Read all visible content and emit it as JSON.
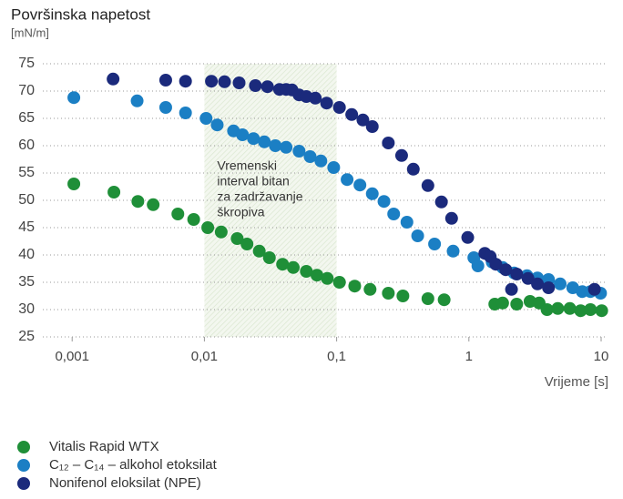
{
  "chart_data": {
    "type": "scatter",
    "title": "Površinska napetost",
    "subtitle": "[mN/m]",
    "x_label": "Vrijeme [s]",
    "log_x": true,
    "grid": true,
    "legend": "bottom-left",
    "xlim": [
      0.0006,
      11
    ],
    "xticks": [
      {
        "value": 0.001,
        "label": "0,001"
      },
      {
        "value": 0.01,
        "label": "0,01"
      },
      {
        "value": 0.1,
        "label": "0,1"
      },
      1,
      10
    ],
    "ylim": [
      25,
      75
    ],
    "yticks": [
      25,
      30,
      35,
      40,
      45,
      50,
      55,
      60,
      65,
      70,
      75
    ],
    "highlight_x": [
      0.01,
      0.1
    ],
    "annotation": [
      "Vremenski",
      "interval bitan",
      "za zadržavanje",
      "škropiva"
    ],
    "series": [
      {
        "name": "Vitalis Rapid WTX",
        "color": "#1f8f38",
        "x": [
          0.00103,
          0.00207,
          0.00314,
          0.0041,
          0.0063,
          0.0083,
          0.0106,
          0.0134,
          0.0177,
          0.021,
          0.026,
          0.031,
          0.039,
          0.047,
          0.059,
          0.071,
          0.085,
          0.105,
          0.137,
          0.179,
          0.246,
          0.317,
          0.49,
          0.65,
          1.57,
          1.8,
          2.3,
          2.9,
          3.4,
          3.9,
          4.7,
          5.8,
          7,
          8.3,
          10.1
        ],
        "values": [
          53,
          51.5,
          49.8,
          49.2,
          47.5,
          46.5,
          45,
          44.2,
          43,
          42,
          40.7,
          39.5,
          38.3,
          37.7,
          37,
          36.3,
          35.7,
          35,
          34.3,
          33.7,
          33,
          32.5,
          32,
          31.8,
          31,
          31.2,
          31,
          31.5,
          31.2,
          30,
          30.2,
          30.2,
          29.8,
          30,
          29.8
        ]
      },
      {
        "name": "C₁₂ – C₁₄ – alkohol etoksilat",
        "color": "#1b7fc4",
        "x": [
          0.00103,
          0.0031,
          0.0051,
          0.0072,
          0.0103,
          0.0125,
          0.0166,
          0.0194,
          0.0235,
          0.0284,
          0.0344,
          0.0415,
          0.052,
          0.063,
          0.076,
          0.095,
          0.12,
          0.15,
          0.186,
          0.228,
          0.27,
          0.34,
          0.41,
          0.55,
          0.76,
          1.09,
          1.17,
          1.5,
          1.8,
          2.2,
          2.75,
          3.3,
          4.0,
          4.9,
          6.1,
          7.2,
          8.3,
          9.9
        ],
        "values": [
          68.8,
          68.2,
          67,
          66,
          65,
          63.8,
          62.7,
          62,
          61.3,
          60.7,
          60,
          59.7,
          59,
          58,
          57.2,
          56,
          53.8,
          52.8,
          51.2,
          49.8,
          47.5,
          46,
          43.5,
          42,
          40.7,
          39.5,
          38,
          38.7,
          37.7,
          36.7,
          36.2,
          35.8,
          35.5,
          34.7,
          34,
          33.3,
          33.3,
          33
        ]
      },
      {
        "name": "Nonifenol eloksilat (NPE)",
        "color": "#1b2a7c",
        "x": [
          0.00204,
          0.0051,
          0.0072,
          0.0113,
          0.0142,
          0.0183,
          0.0243,
          0.03,
          0.037,
          0.0415,
          0.046,
          0.052,
          0.059,
          0.069,
          0.084,
          0.105,
          0.13,
          0.158,
          0.186,
          0.246,
          0.31,
          0.38,
          0.49,
          0.62,
          0.74,
          0.98,
          1.32,
          1.45,
          1.6,
          1.9,
          2.3,
          2.8,
          3.3,
          4.0,
          2.1,
          8.9
        ],
        "values": [
          72.2,
          72,
          71.8,
          71.8,
          71.7,
          71.5,
          71,
          70.8,
          70.3,
          70.3,
          70.2,
          69.3,
          69,
          68.7,
          67.8,
          67,
          65.7,
          64.7,
          63.5,
          60.5,
          58.2,
          55.7,
          52.7,
          49.7,
          46.7,
          43.2,
          40.3,
          39.7,
          38.3,
          37.3,
          36.5,
          35.7,
          34.7,
          34,
          33.7,
          33.7
        ]
      }
    ]
  }
}
